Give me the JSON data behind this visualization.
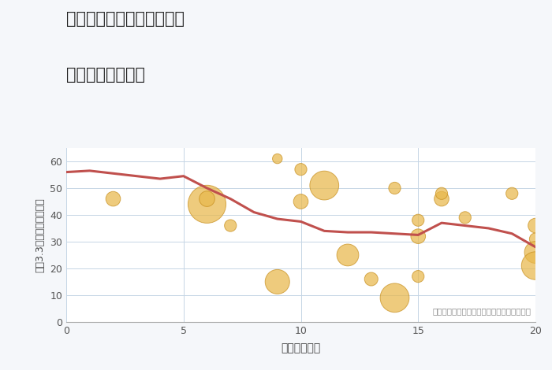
{
  "title_line1": "神奈川県伊勢原市西富岡の",
  "title_line2": "駅距離別土地価格",
  "xlabel": "駅距離（分）",
  "ylabel": "坪（3.3㎡）単価（万円）",
  "annotation": "円の大きさは、取引のあった物件面積を示す",
  "bg_color": "#f5f7fa",
  "plot_bg_color": "#ffffff",
  "xlim": [
    0,
    20
  ],
  "ylim": [
    0,
    65
  ],
  "xticks": [
    0,
    5,
    10,
    15,
    20
  ],
  "yticks": [
    0,
    10,
    20,
    30,
    40,
    50,
    60
  ],
  "line_x": [
    0,
    1,
    2,
    3,
    4,
    5,
    6,
    7,
    8,
    9,
    10,
    11,
    12,
    13,
    14,
    15,
    16,
    17,
    18,
    19,
    20
  ],
  "line_y": [
    56,
    56.5,
    55.5,
    54.5,
    53.5,
    54.5,
    50,
    46,
    41,
    38.5,
    37.5,
    34,
    33.5,
    33.5,
    33,
    32.5,
    37,
    36,
    35,
    33,
    28
  ],
  "line_color": "#c0504d",
  "line_width": 2.2,
  "scatter_x": [
    2,
    6,
    6,
    7,
    9,
    9,
    10,
    10,
    11,
    12,
    13,
    14,
    14,
    15,
    15,
    15,
    16,
    16,
    17,
    19,
    20,
    20,
    20,
    20
  ],
  "scatter_y": [
    46,
    44,
    46,
    36,
    61,
    15,
    57,
    45,
    51,
    25,
    16,
    50,
    9,
    38,
    32,
    17,
    46,
    48,
    39,
    48,
    31,
    26,
    21,
    36
  ],
  "scatter_sizes": [
    180,
    1200,
    200,
    120,
    80,
    500,
    120,
    180,
    700,
    400,
    150,
    120,
    700,
    120,
    180,
    120,
    180,
    120,
    120,
    120,
    120,
    400,
    650,
    180
  ],
  "scatter_color": "#e8b84b",
  "scatter_alpha": 0.72,
  "scatter_edgecolor": "#c89020",
  "scatter_linewidth": 0.7
}
